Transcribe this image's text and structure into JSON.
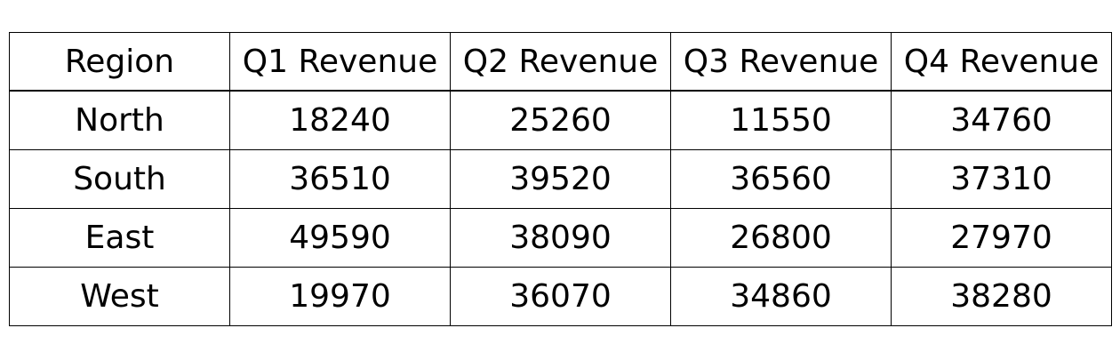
{
  "chart_data": {
    "type": "table",
    "columns": [
      "Region",
      "Q1 Revenue",
      "Q2 Revenue",
      "Q3 Revenue",
      "Q4 Revenue"
    ],
    "rows": [
      [
        "North",
        "18240",
        "25260",
        "11550",
        "34760"
      ],
      [
        "South",
        "36510",
        "39520",
        "36560",
        "37310"
      ],
      [
        "East",
        "49590",
        "38090",
        "26800",
        "27970"
      ],
      [
        "West",
        "19970",
        "36070",
        "34860",
        "38280"
      ]
    ]
  }
}
